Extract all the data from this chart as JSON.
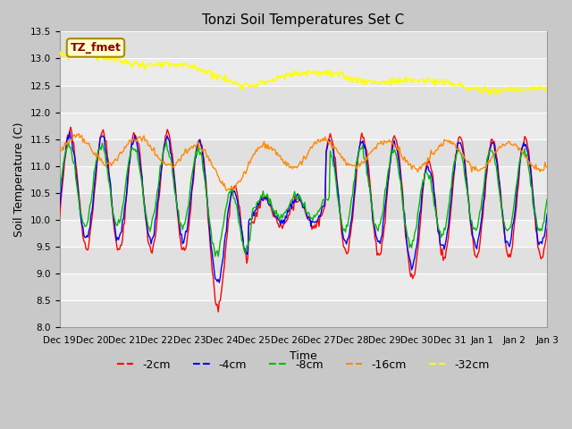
{
  "title": "Tonzi Soil Temperatures Set C",
  "xlabel": "Time",
  "ylabel": "Soil Temperature (C)",
  "ylim": [
    8.0,
    13.5
  ],
  "annotation_text": "TZ_fmet",
  "annotation_box_color": "#ffffcc",
  "annotation_text_color": "#8b0000",
  "fig_bg_color": "#c8c8c8",
  "plot_bg_color": "#e8e8e8",
  "grid_color": "#ffffff",
  "colors": {
    "-2cm": "#ff0000",
    "-4cm": "#0000ff",
    "-8cm": "#00bb00",
    "-16cm": "#ff8800",
    "-32cm": "#ffff00"
  },
  "legend_labels": [
    "-2cm",
    "-4cm",
    "-8cm",
    "-16cm",
    "-32cm"
  ],
  "n_points": 480,
  "yticks": [
    8.0,
    8.5,
    9.0,
    9.5,
    10.0,
    10.5,
    11.0,
    11.5,
    12.0,
    12.5,
    13.0,
    13.5
  ],
  "xtick_labels": [
    "Dec 19",
    "Dec 20",
    "Dec 21",
    "Dec 22",
    "Dec 23",
    "Dec 24",
    "Dec 25",
    "Dec 26",
    "Dec 27",
    "Dec 28",
    "Dec 29",
    "Dec 30",
    "Dec 31",
    "Jan 1",
    "Jan 2",
    "Jan 3"
  ],
  "title_fontsize": 11,
  "axis_label_fontsize": 9,
  "tick_fontsize": 7.5,
  "legend_fontsize": 9
}
